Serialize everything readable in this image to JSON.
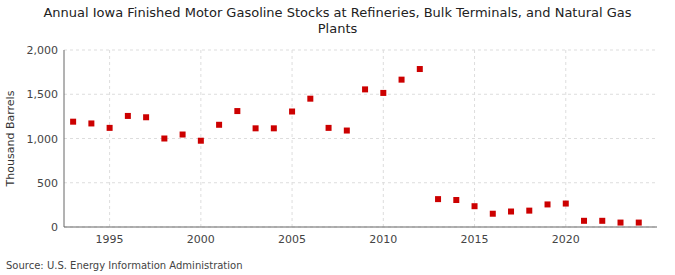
{
  "chart_data": {
    "type": "scatter",
    "title": "Annual Iowa Finished Motor Gasoline Stocks at Refineries, Bulk Terminals, and Natural Gas\nPlants",
    "y_label": "Thousand Barrels",
    "annotations": [
      "Source: U.S. Energy Information Administration"
    ],
    "x": [
      1993,
      1994,
      1995,
      1996,
      1997,
      1998,
      1999,
      2000,
      2001,
      2002,
      2003,
      2004,
      2005,
      2006,
      2007,
      2008,
      2009,
      2010,
      2011,
      2012,
      2013,
      2014,
      2015,
      2016,
      2017,
      2018,
      2019,
      2020,
      2021,
      2022,
      2023,
      2024
    ],
    "values": [
      1190,
      1170,
      1120,
      1255,
      1240,
      1000,
      1045,
      975,
      1155,
      1310,
      1115,
      1115,
      1305,
      1450,
      1120,
      1090,
      1555,
      1515,
      1665,
      1785,
      315,
      305,
      235,
      150,
      175,
      185,
      255,
      265,
      70,
      70,
      50,
      50
    ],
    "color": "#cc0000",
    "marker": "square",
    "xlim": [
      1992.5,
      2025
    ],
    "xticks": [
      1995,
      2000,
      2005,
      2010,
      2015,
      2020
    ],
    "ylim": [
      0,
      2000
    ],
    "yticks": [
      0,
      500,
      {
        "value": 1000,
        "label": "1,000"
      },
      {
        "value": 1500,
        "label": "1,500"
      },
      {
        "value": 2000,
        "label": "2,000"
      }
    ],
    "grid": true
  }
}
